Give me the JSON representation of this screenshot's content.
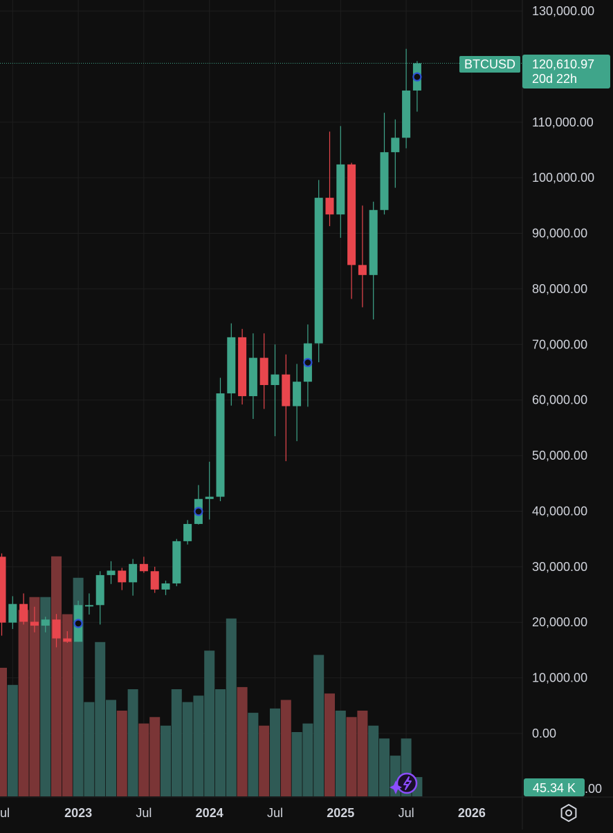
{
  "symbol": "BTCUSD",
  "price_tag": {
    "price": "120,610.97",
    "countdown": "20d 22h"
  },
  "volume_tag": "45.34 K",
  "colors": {
    "background": "#0f0f0f",
    "grid": "#1e1e1e",
    "up": "#3fa58a",
    "down": "#e8464d",
    "vol_up": "#2f5a55",
    "vol_down": "#7a3536",
    "event_marker": "#2c52d4",
    "assistant_purple": "#8c4dff"
  },
  "chart_data": {
    "type": "candlestick",
    "interval": "1M",
    "y_axis": {
      "ticks": [
        "130,000.00",
        "110,000.00",
        "100,000.00",
        "90,000.00",
        "80,000.00",
        "70,000.00",
        "60,000.00",
        "50,000.00",
        "40,000.00",
        "30,000.00",
        "20,000.00",
        "10,000.00",
        "0.00"
      ],
      "tick_values": [
        130000,
        110000,
        100000,
        90000,
        80000,
        70000,
        60000,
        50000,
        40000,
        30000,
        20000,
        10000,
        0
      ],
      "range": [
        -12000,
        132000
      ],
      "partial_bottom_label": ".00"
    },
    "x_axis": {
      "labels": [
        {
          "text": "ul",
          "year": false,
          "month": "2022-07"
        },
        {
          "text": "2023",
          "year": true,
          "month": "2023-01"
        },
        {
          "text": "Jul",
          "year": false,
          "month": "2023-07"
        },
        {
          "text": "2024",
          "year": true,
          "month": "2024-01"
        },
        {
          "text": "Jul",
          "year": false,
          "month": "2024-07"
        },
        {
          "text": "2025",
          "year": true,
          "month": "2025-01"
        },
        {
          "text": "Jul",
          "year": false,
          "month": "2025-07"
        },
        {
          "text": "2026",
          "year": true,
          "month": "2026-01"
        }
      ]
    },
    "candles": [
      {
        "t": "2022-06",
        "o": 31800,
        "h": 32400,
        "l": 17600,
        "c": 19950,
        "v": 0.6
      },
      {
        "t": "2022-07",
        "o": 19950,
        "h": 24700,
        "l": 18800,
        "c": 23300,
        "v": 0.52
      },
      {
        "t": "2022-08",
        "o": 23300,
        "h": 25200,
        "l": 19600,
        "c": 20100,
        "v": 0.87
      },
      {
        "t": "2022-09",
        "o": 20100,
        "h": 22800,
        "l": 18200,
        "c": 19400,
        "v": 0.93
      },
      {
        "t": "2022-10",
        "o": 19400,
        "h": 21000,
        "l": 18200,
        "c": 20500,
        "v": 0.93
      },
      {
        "t": "2022-11",
        "o": 20500,
        "h": 21500,
        "l": 15500,
        "c": 17100,
        "v": 1.12
      },
      {
        "t": "2022-12",
        "o": 17100,
        "h": 18400,
        "l": 16300,
        "c": 16500,
        "v": 0.85
      },
      {
        "t": "2023-01",
        "o": 16500,
        "h": 23900,
        "l": 16500,
        "c": 23100,
        "v": 1.02
      },
      {
        "t": "2023-02",
        "o": 23100,
        "h": 25200,
        "l": 21400,
        "c": 23100,
        "v": 0.44
      },
      {
        "t": "2023-03",
        "o": 23100,
        "h": 29200,
        "l": 19600,
        "c": 28500,
        "v": 0.72
      },
      {
        "t": "2023-04",
        "o": 28500,
        "h": 31000,
        "l": 26900,
        "c": 29300,
        "v": 0.45
      },
      {
        "t": "2023-05",
        "o": 29300,
        "h": 29800,
        "l": 25800,
        "c": 27200,
        "v": 0.4
      },
      {
        "t": "2023-06",
        "o": 27200,
        "h": 31400,
        "l": 24800,
        "c": 30500,
        "v": 0.5
      },
      {
        "t": "2023-07",
        "o": 30500,
        "h": 31800,
        "l": 28900,
        "c": 29200,
        "v": 0.34
      },
      {
        "t": "2023-08",
        "o": 29200,
        "h": 30000,
        "l": 25300,
        "c": 25900,
        "v": 0.37
      },
      {
        "t": "2023-09",
        "o": 25900,
        "h": 27500,
        "l": 24900,
        "c": 27000,
        "v": 0.33
      },
      {
        "t": "2023-10",
        "o": 27000,
        "h": 35000,
        "l": 26500,
        "c": 34600,
        "v": 0.5
      },
      {
        "t": "2023-11",
        "o": 34600,
        "h": 38400,
        "l": 34000,
        "c": 37700,
        "v": 0.44
      },
      {
        "t": "2023-12",
        "o": 37700,
        "h": 44700,
        "l": 37600,
        "c": 42200,
        "v": 0.47
      },
      {
        "t": "2024-01",
        "o": 42200,
        "h": 48900,
        "l": 38500,
        "c": 42600,
        "v": 0.68
      },
      {
        "t": "2024-02",
        "o": 42600,
        "h": 64000,
        "l": 41800,
        "c": 61200,
        "v": 0.5
      },
      {
        "t": "2024-03",
        "o": 61200,
        "h": 73800,
        "l": 59000,
        "c": 71300,
        "v": 0.83
      },
      {
        "t": "2024-04",
        "o": 71300,
        "h": 72800,
        "l": 59200,
        "c": 60700,
        "v": 0.51
      },
      {
        "t": "2024-05",
        "o": 60700,
        "h": 72000,
        "l": 56600,
        "c": 67600,
        "v": 0.39
      },
      {
        "t": "2024-06",
        "o": 67600,
        "h": 72000,
        "l": 58400,
        "c": 62700,
        "v": 0.33
      },
      {
        "t": "2024-07",
        "o": 62700,
        "h": 70000,
        "l": 53500,
        "c": 64600,
        "v": 0.41
      },
      {
        "t": "2024-08",
        "o": 64600,
        "h": 68200,
        "l": 49000,
        "c": 58900,
        "v": 0.45
      },
      {
        "t": "2024-09",
        "o": 58900,
        "h": 66500,
        "l": 52600,
        "c": 63300,
        "v": 0.3
      },
      {
        "t": "2024-10",
        "o": 63300,
        "h": 73600,
        "l": 58800,
        "c": 70200,
        "v": 0.34
      },
      {
        "t": "2024-11",
        "o": 70200,
        "h": 99600,
        "l": 66800,
        "c": 96400,
        "v": 0.66
      },
      {
        "t": "2024-12",
        "o": 96400,
        "h": 108300,
        "l": 91300,
        "c": 93400,
        "v": 0.48
      },
      {
        "t": "2025-01",
        "o": 93400,
        "h": 109300,
        "l": 89200,
        "c": 102400,
        "v": 0.4
      },
      {
        "t": "2025-02",
        "o": 102400,
        "h": 102700,
        "l": 78200,
        "c": 84300,
        "v": 0.37
      },
      {
        "t": "2025-03",
        "o": 84300,
        "h": 95000,
        "l": 76700,
        "c": 82500,
        "v": 0.4
      },
      {
        "t": "2025-04",
        "o": 82500,
        "h": 95700,
        "l": 74500,
        "c": 94200,
        "v": 0.33
      },
      {
        "t": "2025-05",
        "o": 94200,
        "h": 111700,
        "l": 93400,
        "c": 104600,
        "v": 0.27
      },
      {
        "t": "2025-06",
        "o": 104600,
        "h": 110500,
        "l": 98200,
        "c": 107200,
        "v": 0.19
      },
      {
        "t": "2025-07",
        "o": 107200,
        "h": 123200,
        "l": 105300,
        "c": 115700,
        "v": 0.27
      },
      {
        "t": "2025-08",
        "o": 115700,
        "h": 121000,
        "l": 111900,
        "c": 120611,
        "v": 0.09
      }
    ],
    "event_markers": [
      "2023-01",
      "2023-12",
      "2024-10",
      "2025-08"
    ]
  }
}
